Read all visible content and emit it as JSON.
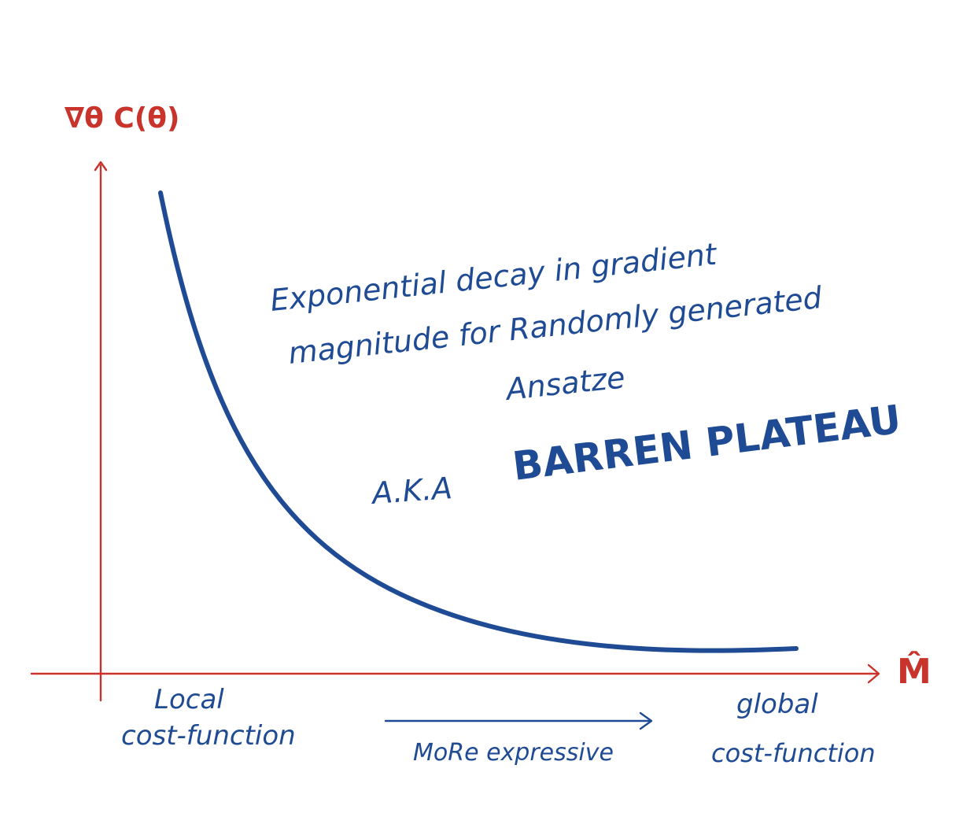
{
  "y_axis": {
    "label": "∇θ C(θ)"
  },
  "x_axis": {
    "label": "M̂",
    "left_label_line1": "Local",
    "left_label_line2": "cost-function",
    "right_label_line1": "global",
    "right_label_line2": "cost-function",
    "direction_label": "MoRe expressive"
  },
  "annotation": {
    "line1": "Exponential decay in gradient",
    "line2": "magnitude for Randomly generated",
    "line3": "Ansatze",
    "aka": "A.K.A",
    "emphasis": "BARREN PLATEAU"
  },
  "colors": {
    "axis": "#c8332b",
    "curve": "#1f4a94",
    "text": "#1f4a94"
  }
}
